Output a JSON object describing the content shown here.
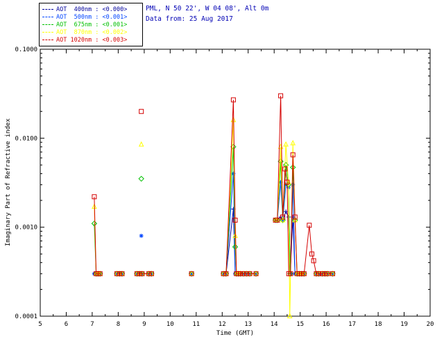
{
  "header": {
    "location_line": "PML, N 50 22', W 04 08', Alt 0m",
    "date_line": "Data from: 25 Aug 2017"
  },
  "legend": {
    "entries": [
      {
        "wavelength": "400nm",
        "label": "AOT  400nm : <0.000>",
        "color": "#00009c",
        "marker": "plus"
      },
      {
        "wavelength": "500nm",
        "label": "AOT  500nm : <0.001>",
        "color": "#0044ff",
        "marker": "asterisk"
      },
      {
        "wavelength": "675nm",
        "label": "AOT  675nm : <0.001>",
        "color": "#00c000",
        "marker": "diamond"
      },
      {
        "wavelength": "870nm",
        "label": "AOT  870nm : <0.002>",
        "color": "#ffff00",
        "marker": "triangle"
      },
      {
        "wavelength": "1020nm",
        "label": "AOT 1020nm : <0.003>",
        "color": "#d40000",
        "marker": "square"
      }
    ]
  },
  "chart_data": {
    "type": "line",
    "title": "",
    "xlabel": "Time (GMT)",
    "ylabel": "Imaginary Part of Refractive index",
    "grid": false,
    "legend_position": "top-left",
    "x_axis": {
      "min": 5,
      "max": 20,
      "ticks": [
        5,
        6,
        7,
        8,
        9,
        10,
        11,
        12,
        13,
        14,
        15,
        16,
        17,
        18,
        19,
        20
      ]
    },
    "y_axis": {
      "scale": "log",
      "min": 0.0001,
      "max": 0.1,
      "ticks": [
        {
          "value": 0.0001,
          "label": "0.0001"
        },
        {
          "value": 0.001,
          "label": "0.0010"
        },
        {
          "value": 0.01,
          "label": "0.0100"
        },
        {
          "value": 0.1,
          "label": "0.1000"
        }
      ]
    },
    "series": [
      {
        "name": "AOT 400nm",
        "color": "#00009c",
        "marker": "plus",
        "segments": [
          [
            [
              7.08,
              0.0003
            ],
            [
              7.15,
              0.0003
            ],
            [
              7.22,
              0.0003
            ],
            [
              7.3,
              0.0003
            ]
          ],
          [
            [
              7.95,
              0.0003
            ],
            [
              8.05,
              0.0003
            ],
            [
              8.15,
              0.0003
            ]
          ],
          [
            [
              8.72,
              0.0003
            ],
            [
              8.82,
              0.0003
            ],
            [
              8.92,
              0.0003
            ],
            [
              9.18,
              0.0003
            ],
            [
              9.28,
              0.0003
            ]
          ],
          [
            [
              10.82,
              0.0003
            ]
          ],
          [
            [
              12.05,
              0.0003
            ],
            [
              12.15,
              0.0003
            ],
            [
              12.43,
              0.0016
            ],
            [
              12.5,
              0.0003
            ],
            [
              12.55,
              0.0003
            ],
            [
              12.62,
              0.0003
            ],
            [
              12.7,
              0.0003
            ],
            [
              12.82,
              0.0003
            ],
            [
              12.94,
              0.0003
            ],
            [
              13.06,
              0.0003
            ],
            [
              13.3,
              0.0003
            ]
          ],
          [
            [
              14.05,
              0.0012
            ],
            [
              14.12,
              0.0012
            ],
            [
              14.25,
              0.0013
            ],
            [
              14.33,
              0.0012
            ],
            [
              14.45,
              0.0015
            ],
            [
              14.55,
              0.0013
            ],
            [
              14.62,
              0.0003
            ],
            [
              14.72,
              0.0013
            ],
            [
              14.8,
              0.0003
            ],
            [
              14.88,
              0.0003
            ],
            [
              14.97,
              0.0003
            ],
            [
              15.06,
              0.0003
            ],
            [
              15.15,
              0.0003
            ]
          ],
          [
            [
              15.62,
              0.0003
            ],
            [
              15.72,
              0.0003
            ],
            [
              15.85,
              0.0003
            ],
            [
              15.95,
              0.0003
            ],
            [
              16.05,
              0.0003
            ],
            [
              16.25,
              0.0003
            ]
          ]
        ]
      },
      {
        "name": "AOT 500nm",
        "color": "#0044ff",
        "marker": "asterisk",
        "segments": [
          [
            [
              7.08,
              0.0003
            ],
            [
              7.15,
              0.0003
            ],
            [
              7.22,
              0.0003
            ],
            [
              7.3,
              0.0003
            ]
          ],
          [
            [
              7.95,
              0.0003
            ],
            [
              8.05,
              0.0003
            ],
            [
              8.15,
              0.0003
            ]
          ],
          [
            [
              8.89,
              0.0008
            ]
          ],
          [
            [
              8.72,
              0.0003
            ],
            [
              8.82,
              0.0003
            ],
            [
              8.92,
              0.0003
            ],
            [
              9.18,
              0.0003
            ],
            [
              9.28,
              0.0003
            ]
          ],
          [
            [
              10.82,
              0.0003
            ]
          ],
          [
            [
              12.05,
              0.0003
            ],
            [
              12.15,
              0.0003
            ],
            [
              12.43,
              0.004
            ],
            [
              12.5,
              0.0003
            ],
            [
              12.55,
              0.0003
            ],
            [
              12.62,
              0.0003
            ],
            [
              12.7,
              0.0003
            ],
            [
              12.82,
              0.0003
            ],
            [
              12.94,
              0.0003
            ],
            [
              13.06,
              0.0003
            ],
            [
              13.3,
              0.0003
            ]
          ],
          [
            [
              14.05,
              0.0012
            ],
            [
              14.12,
              0.0012
            ],
            [
              14.25,
              0.0032
            ],
            [
              14.33,
              0.0012
            ],
            [
              14.45,
              0.003
            ],
            [
              14.55,
              0.0028
            ],
            [
              14.62,
              0.0003
            ],
            [
              14.72,
              0.003
            ],
            [
              14.8,
              0.0003
            ],
            [
              14.88,
              0.0003
            ],
            [
              14.97,
              0.0003
            ],
            [
              15.06,
              0.0003
            ],
            [
              15.15,
              0.0003
            ]
          ],
          [
            [
              15.62,
              0.0003
            ],
            [
              15.72,
              0.0003
            ],
            [
              15.85,
              0.0003
            ],
            [
              15.95,
              0.0003
            ],
            [
              16.05,
              0.0003
            ],
            [
              16.25,
              0.0003
            ]
          ]
        ]
      },
      {
        "name": "AOT 675nm",
        "color": "#00c000",
        "marker": "diamond",
        "segments": [
          [
            [
              7.08,
              0.0011
            ],
            [
              7.15,
              0.0003
            ],
            [
              7.22,
              0.0003
            ],
            [
              7.3,
              0.0003
            ]
          ],
          [
            [
              7.95,
              0.0003
            ],
            [
              8.05,
              0.0003
            ],
            [
              8.15,
              0.0003
            ]
          ],
          [
            [
              8.89,
              0.0035
            ]
          ],
          [
            [
              8.72,
              0.0003
            ],
            [
              8.82,
              0.0003
            ],
            [
              8.92,
              0.0003
            ],
            [
              9.18,
              0.0003
            ],
            [
              9.28,
              0.0003
            ]
          ],
          [
            [
              10.82,
              0.0003
            ]
          ],
          [
            [
              12.05,
              0.0003
            ],
            [
              12.15,
              0.0003
            ],
            [
              12.43,
              0.008
            ],
            [
              12.5,
              0.0006
            ],
            [
              12.55,
              0.0003
            ],
            [
              12.62,
              0.0003
            ],
            [
              12.7,
              0.0003
            ],
            [
              12.82,
              0.0003
            ],
            [
              12.94,
              0.0003
            ],
            [
              13.06,
              0.0003
            ],
            [
              13.3,
              0.0003
            ]
          ],
          [
            [
              14.05,
              0.0012
            ],
            [
              14.12,
              0.0012
            ],
            [
              14.25,
              0.0055
            ],
            [
              14.33,
              0.0012
            ],
            [
              14.45,
              0.005
            ],
            [
              14.55,
              0.003
            ],
            [
              14.62,
              0.0003
            ],
            [
              14.72,
              0.0047
            ],
            [
              14.8,
              0.0012
            ],
            [
              14.88,
              0.0003
            ],
            [
              14.97,
              0.0003
            ],
            [
              15.06,
              0.0003
            ],
            [
              15.15,
              0.0003
            ]
          ],
          [
            [
              15.62,
              0.0003
            ],
            [
              15.72,
              0.0003
            ],
            [
              15.85,
              0.0003
            ],
            [
              15.95,
              0.0003
            ],
            [
              16.05,
              0.0003
            ],
            [
              16.25,
              0.0003
            ]
          ]
        ]
      },
      {
        "name": "AOT 870nm",
        "color": "#ffff00",
        "marker": "triangle",
        "segments": [
          [
            [
              7.08,
              0.0017
            ],
            [
              7.15,
              0.0003
            ],
            [
              7.22,
              0.0003
            ],
            [
              7.3,
              0.0003
            ]
          ],
          [
            [
              7.95,
              0.0003
            ],
            [
              8.05,
              0.0003
            ],
            [
              8.15,
              0.0003
            ]
          ],
          [
            [
              8.89,
              0.0085
            ]
          ],
          [
            [
              8.72,
              0.0003
            ],
            [
              8.82,
              0.0003
            ],
            [
              8.92,
              0.0003
            ],
            [
              9.18,
              0.0003
            ],
            [
              9.28,
              0.0003
            ]
          ],
          [
            [
              10.82,
              0.0003
            ]
          ],
          [
            [
              12.05,
              0.0003
            ],
            [
              12.15,
              0.0003
            ],
            [
              12.43,
              0.016
            ],
            [
              12.5,
              0.0008
            ],
            [
              12.55,
              0.0003
            ],
            [
              12.62,
              0.0003
            ],
            [
              12.7,
              0.0003
            ],
            [
              12.82,
              0.0003
            ],
            [
              12.94,
              0.0003
            ],
            [
              13.06,
              0.0003
            ],
            [
              13.3,
              0.0003
            ]
          ],
          [
            [
              14.05,
              0.0012
            ],
            [
              14.12,
              0.0012
            ],
            [
              14.25,
              0.008
            ],
            [
              14.33,
              0.0012
            ],
            [
              14.45,
              0.0085
            ],
            [
              14.55,
              0.0032
            ],
            [
              14.6,
              0.0001
            ],
            [
              14.72,
              0.0088
            ],
            [
              14.8,
              0.0012
            ],
            [
              14.88,
              0.0003
            ],
            [
              14.97,
              0.0003
            ],
            [
              15.06,
              0.0003
            ],
            [
              15.15,
              0.0003
            ]
          ],
          [
            [
              15.62,
              0.0003
            ],
            [
              15.72,
              0.0003
            ],
            [
              15.85,
              0.0003
            ],
            [
              15.95,
              0.0003
            ],
            [
              16.05,
              0.0003
            ],
            [
              16.25,
              0.0003
            ]
          ]
        ]
      },
      {
        "name": "AOT 1020nm",
        "color": "#d40000",
        "marker": "square",
        "segments": [
          [
            [
              7.08,
              0.0022
            ],
            [
              7.15,
              0.0003
            ],
            [
              7.22,
              0.0003
            ],
            [
              7.3,
              0.0003
            ]
          ],
          [
            [
              7.95,
              0.0003
            ],
            [
              8.05,
              0.0003
            ],
            [
              8.15,
              0.0003
            ]
          ],
          [
            [
              8.89,
              0.02
            ]
          ],
          [
            [
              8.72,
              0.0003
            ],
            [
              8.82,
              0.0003
            ],
            [
              8.92,
              0.0003
            ],
            [
              9.18,
              0.0003
            ],
            [
              9.28,
              0.0003
            ]
          ],
          [
            [
              10.82,
              0.0003
            ]
          ],
          [
            [
              12.05,
              0.0003
            ],
            [
              12.15,
              0.0003
            ],
            [
              12.43,
              0.027
            ],
            [
              12.5,
              0.0012
            ],
            [
              12.55,
              0.0003
            ],
            [
              12.62,
              0.0003
            ],
            [
              12.7,
              0.0003
            ],
            [
              12.82,
              0.0003
            ],
            [
              12.94,
              0.0003
            ],
            [
              13.06,
              0.0003
            ],
            [
              13.3,
              0.0003
            ]
          ],
          [
            [
              14.05,
              0.0012
            ],
            [
              14.12,
              0.0012
            ],
            [
              14.25,
              0.03
            ],
            [
              14.33,
              0.0013
            ],
            [
              14.42,
              0.0045
            ],
            [
              14.5,
              0.0032
            ],
            [
              14.56,
              0.0003
            ],
            [
              14.63,
              0.0003
            ],
            [
              14.72,
              0.0065
            ],
            [
              14.8,
              0.0013
            ],
            [
              14.88,
              0.0003
            ],
            [
              14.97,
              0.0003
            ],
            [
              15.06,
              0.0003
            ],
            [
              15.15,
              0.0003
            ],
            [
              15.35,
              0.00105
            ],
            [
              15.45,
              0.0005
            ],
            [
              15.52,
              0.00042
            ],
            [
              15.62,
              0.0003
            ],
            [
              15.72,
              0.0003
            ],
            [
              15.85,
              0.0003
            ],
            [
              15.95,
              0.0003
            ],
            [
              16.05,
              0.0003
            ],
            [
              16.25,
              0.0003
            ]
          ]
        ]
      }
    ]
  }
}
